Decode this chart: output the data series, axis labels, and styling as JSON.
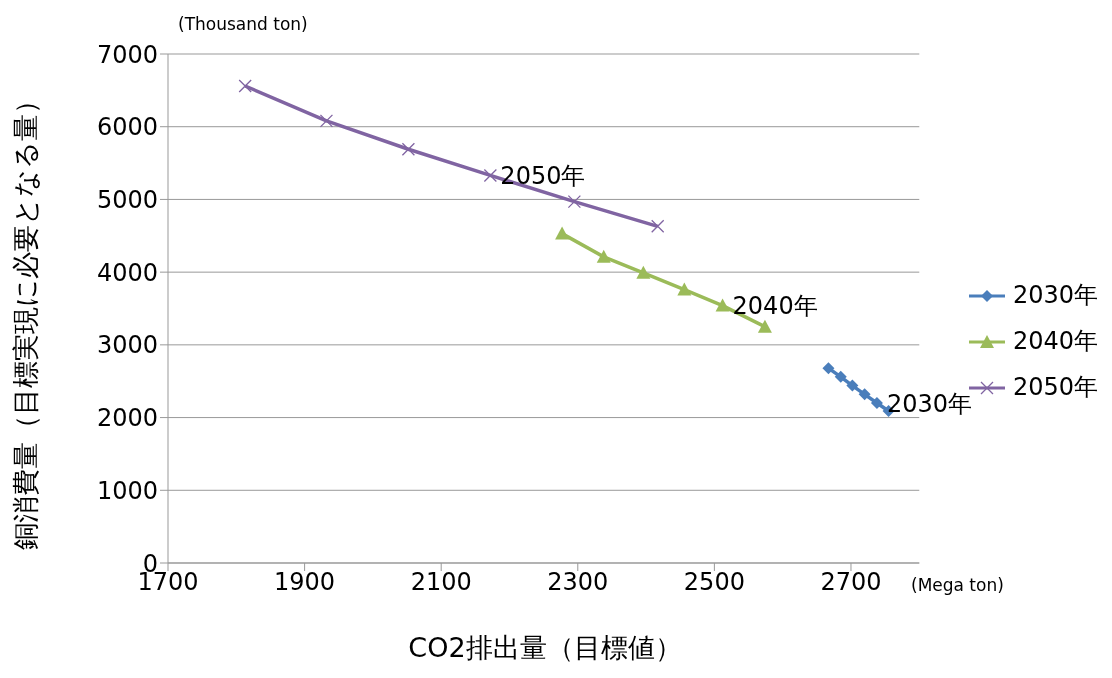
{
  "chart_data": {
    "type": "line",
    "xlabel": "CO2排出量（目標値）",
    "ylabel": "銅消費量（目標実現に必要となる量）",
    "xlim": [
      1700,
      2800
    ],
    "xticks": [
      1700,
      1900,
      2100,
      2300,
      2500,
      2700
    ],
    "ylim": [
      0,
      7000
    ],
    "yticks": [
      0,
      1000,
      2000,
      3000,
      4000,
      5000,
      6000,
      7000
    ],
    "grid": "y",
    "legend": "right",
    "series": [
      {
        "name": "2030年",
        "color": "#4a7ebb",
        "marker": "diamond",
        "x": [
          2667,
          2685,
          2702,
          2720,
          2738,
          2755
        ],
        "values": [
          2680,
          2560,
          2440,
          2320,
          2200,
          2090
        ]
      },
      {
        "name": "2040年",
        "color": "#9bbb59",
        "marker": "triangle",
        "x": [
          2277,
          2338,
          2396,
          2456,
          2512,
          2574
        ],
        "values": [
          4530,
          4210,
          3990,
          3760,
          3540,
          3250
        ]
      },
      {
        "name": "2050年",
        "color": "#8064a2",
        "marker": "cross",
        "x": [
          1813,
          1932,
          2052,
          2172,
          2295,
          2417
        ],
        "values": [
          6560,
          6080,
          5690,
          5330,
          4970,
          4630
        ]
      }
    ],
    "annotations": [
      {
        "text": "2030年",
        "x": 2738,
        "y": 2200
      },
      {
        "text": "2040年",
        "x": 2512,
        "y": 3540
      },
      {
        "text": "2050年",
        "x": 2172,
        "y": 5330
      },
      "(Thousand ton)",
      "(Mega ton)"
    ]
  }
}
